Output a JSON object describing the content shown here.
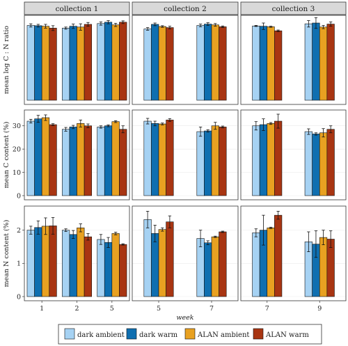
{
  "chart_data": {
    "type": "bar",
    "xlabel": "week",
    "collections": [
      "collection 1",
      "collection 2",
      "collection 3"
    ],
    "weeks": [
      [
        "1",
        "2",
        "5"
      ],
      [
        "5",
        "7"
      ],
      [
        "7",
        "9"
      ]
    ],
    "series": [
      {
        "name": "dark ambient",
        "color": "#a6d2f3"
      },
      {
        "name": "dark warm",
        "color": "#0f6fb0"
      },
      {
        "name": "ALAN ambient",
        "color": "#e8a121"
      },
      {
        "name": "ALAN warm",
        "color": "#a83512"
      }
    ],
    "rows": [
      {
        "ylabel": "mean log C : N ratio",
        "ylim": [
          0,
          3.0
        ],
        "yticks": [],
        "data": [
          [
            [
              2.78,
              0.06
            ],
            [
              2.77,
              0.05
            ],
            [
              2.75,
              0.07
            ],
            [
              2.68,
              0.09
            ]
          ],
          [
            [
              2.68,
              0.04
            ],
            [
              2.75,
              0.08
            ],
            [
              2.72,
              0.12
            ],
            [
              2.82,
              0.07
            ]
          ],
          [
            [
              2.85,
              0.06
            ],
            [
              2.9,
              0.06
            ],
            [
              2.8,
              0.06
            ],
            [
              2.9,
              0.05
            ]
          ],
          [
            [
              2.65,
              0.05
            ],
            [
              2.82,
              0.05
            ],
            [
              2.74,
              0.03
            ],
            [
              2.7,
              0.05
            ]
          ],
          [
            [
              2.78,
              0.05
            ],
            [
              2.83,
              0.05
            ],
            [
              2.8,
              0.05
            ],
            [
              2.73,
              0.03
            ]
          ],
          [
            [
              2.76,
              0.02
            ],
            [
              2.75,
              0.12
            ],
            [
              2.73,
              0.02
            ],
            [
              2.58,
              0.03
            ]
          ],
          [
            [
              2.84,
              0.12
            ],
            [
              2.87,
              0.2
            ],
            [
              2.72,
              0.06
            ],
            [
              2.83,
              0.08
            ]
          ]
        ]
      },
      {
        "ylabel": "mean C content (%)",
        "ylim": [
          0,
          35
        ],
        "yticks": [
          "0",
          "10",
          "20",
          "30"
        ],
        "data": [
          [
            [
              32.0,
              0.8
            ],
            [
              33.0,
              1.5
            ],
            [
              33.5,
              1.2
            ],
            [
              30.5,
              0.4
            ]
          ],
          [
            [
              28.5,
              0.8
            ],
            [
              29.5,
              0.7
            ],
            [
              31.0,
              1.5
            ],
            [
              30.0,
              0.8
            ]
          ],
          [
            [
              29.5,
              0.5
            ],
            [
              30.0,
              0.4
            ],
            [
              31.8,
              0.4
            ],
            [
              28.5,
              1.5
            ]
          ],
          [
            [
              32.0,
              1.2
            ],
            [
              31.0,
              1.0
            ],
            [
              30.8,
              0.4
            ],
            [
              32.5,
              0.6
            ]
          ],
          [
            [
              27.5,
              2.0
            ],
            [
              27.8,
              0.5
            ],
            [
              30.0,
              1.5
            ],
            [
              29.5,
              0.4
            ]
          ],
          [
            [
              30.0,
              1.8
            ],
            [
              30.5,
              2.5
            ],
            [
              31.0,
              0.4
            ],
            [
              32.0,
              3.0
            ]
          ],
          [
            [
              27.5,
              1.2
            ],
            [
              26.5,
              0.5
            ],
            [
              27.0,
              1.8
            ],
            [
              28.5,
              1.5
            ]
          ]
        ]
      },
      {
        "ylabel": "mean N content (%)",
        "ylim": [
          0,
          2.6
        ],
        "yticks": [
          "0",
          "1",
          "2"
        ],
        "data": [
          [
            [
              2.0,
              0.12
            ],
            [
              2.08,
              0.2
            ],
            [
              2.12,
              0.25
            ],
            [
              2.13,
              0.25
            ]
          ],
          [
            [
              2.0,
              0.04
            ],
            [
              1.87,
              0.12
            ],
            [
              2.07,
              0.12
            ],
            [
              1.8,
              0.1
            ]
          ],
          [
            [
              1.72,
              0.15
            ],
            [
              1.63,
              0.15
            ],
            [
              1.9,
              0.04
            ],
            [
              1.57,
              0.02
            ]
          ],
          [
            [
              2.32,
              0.25
            ],
            [
              1.9,
              0.25
            ],
            [
              2.02,
              0.05
            ],
            [
              2.25,
              0.18
            ]
          ],
          [
            [
              1.75,
              0.25
            ],
            [
              1.62,
              0.06
            ],
            [
              1.8,
              0.02
            ],
            [
              1.95,
              0.02
            ]
          ],
          [
            [
              1.92,
              0.12
            ],
            [
              2.0,
              0.45
            ],
            [
              2.07,
              0.02
            ],
            [
              2.45,
              0.12
            ]
          ],
          [
            [
              1.65,
              0.3
            ],
            [
              1.58,
              0.4
            ],
            [
              1.78,
              0.22
            ],
            [
              1.73,
              0.25
            ]
          ]
        ]
      }
    ]
  }
}
